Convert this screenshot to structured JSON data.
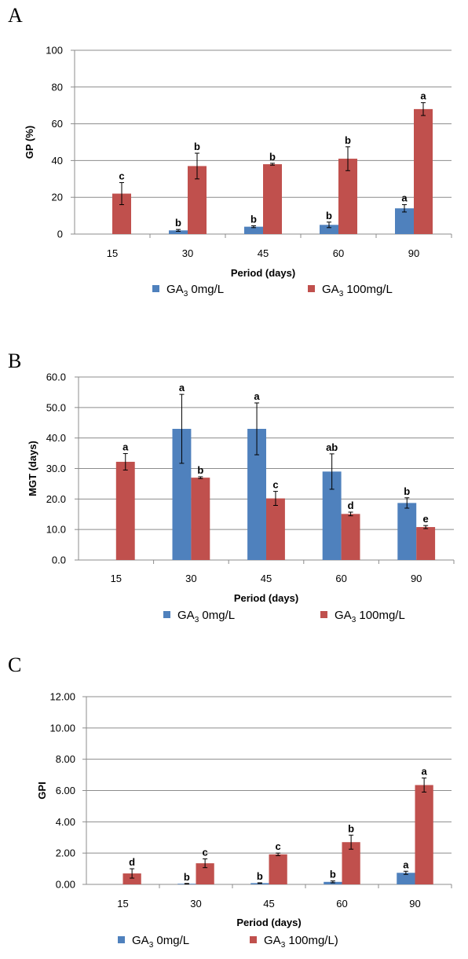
{
  "colors": {
    "GA3_0": "#4F81BD",
    "GA3_100": "#C0504D",
    "grid": "#8C8C8C",
    "axis": "#8C8C8C",
    "error": "#000000"
  },
  "chart_data": [
    {
      "panel": "A",
      "type": "bar",
      "categories": [
        "15",
        "30",
        "45",
        "60",
        "90"
      ],
      "xlabel": "Period (days)",
      "ylabel": "GP (%)",
      "ylim": [
        0,
        100
      ],
      "yticks": [
        0,
        20,
        40,
        60,
        80,
        100
      ],
      "tick_format": 0,
      "grid": true,
      "legend": "bottom",
      "series": [
        {
          "name": "GA3 0mg/L",
          "name_base": "GA",
          "name_sub": "3",
          "name_rest": " 0mg/L",
          "values": [
            null,
            2,
            4,
            5,
            14
          ],
          "errors": [
            null,
            0.5,
            0.5,
            1.5,
            2
          ],
          "letters": [
            "",
            "b",
            "b",
            "b",
            "a"
          ]
        },
        {
          "name": "GA3 100mg/L",
          "name_base": "GA",
          "name_sub": "3",
          "name_rest": " 100mg/L",
          "values": [
            22,
            37,
            38,
            41,
            68
          ],
          "errors": [
            6,
            7,
            0.5,
            6.5,
            3.5
          ],
          "letters": [
            "c",
            "b",
            "b",
            "b",
            "a"
          ]
        }
      ]
    },
    {
      "panel": "B",
      "type": "bar",
      "categories": [
        "15",
        "30",
        "45",
        "60",
        "90"
      ],
      "xlabel": "Period (days)",
      "ylabel": "MGT (days)",
      "ylim": [
        0,
        60
      ],
      "yticks": [
        0,
        10,
        20,
        30,
        40,
        50,
        60
      ],
      "tick_format": 1,
      "grid": true,
      "legend": "bottom",
      "series": [
        {
          "name": "GA3 0mg/L",
          "name_base": "GA",
          "name_sub": "3",
          "name_rest": " 0mg/L",
          "values": [
            null,
            43,
            43,
            29,
            18.7
          ],
          "errors": [
            null,
            11.3,
            8.5,
            5.8,
            1.7
          ],
          "letters": [
            "",
            "a",
            "a",
            "ab",
            "b"
          ]
        },
        {
          "name": "GA3 100mg/L",
          "name_base": "GA",
          "name_sub": "3",
          "name_rest": " 100mg/L",
          "values": [
            32.2,
            27,
            20.2,
            15.1,
            10.8
          ],
          "errors": [
            2.7,
            0.3,
            2.3,
            0.6,
            0.5
          ],
          "letters": [
            "a",
            "b",
            "c",
            "d",
            "e"
          ]
        }
      ]
    },
    {
      "panel": "C",
      "type": "bar",
      "categories": [
        "15",
        "30",
        "45",
        "60",
        "90"
      ],
      "xlabel": "Period (days)",
      "ylabel": "GPI",
      "ylim": [
        0,
        12
      ],
      "yticks": [
        0,
        2,
        4,
        6,
        8,
        10,
        12
      ],
      "tick_format": 2,
      "grid": true,
      "legend": "bottom",
      "series": [
        {
          "name": "GA3 0mg/L",
          "name_base": "GA",
          "name_sub": "3",
          "name_rest": " 0mg/L",
          "values": [
            null,
            0.04,
            0.08,
            0.16,
            0.74
          ],
          "errors": [
            null,
            0.02,
            0.02,
            0.06,
            0.1
          ],
          "letters": [
            "",
            "b",
            "b",
            "b",
            "a"
          ]
        },
        {
          "name": "GA3 100mg/L)",
          "name_base": "GA",
          "name_sub": "3",
          "name_rest": " 100mg/L)",
          "values": [
            0.7,
            1.35,
            1.92,
            2.7,
            6.35
          ],
          "errors": [
            0.3,
            0.28,
            0.08,
            0.45,
            0.45
          ],
          "letters": [
            "d",
            "c",
            "c",
            "b",
            "a"
          ]
        }
      ]
    }
  ]
}
